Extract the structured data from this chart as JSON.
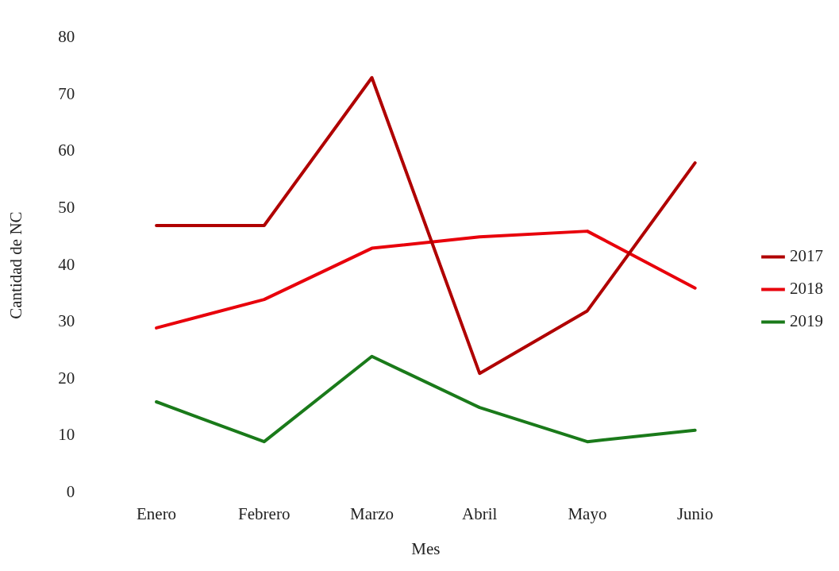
{
  "chart_data": {
    "type": "line",
    "xlabel": "Mes",
    "ylabel": "Cantidad de NC",
    "categories": [
      "Enero",
      "Febrero",
      "Marzo",
      "Abril",
      "Mayo",
      "Junio"
    ],
    "series": [
      {
        "name": "2017",
        "color": "#b00000",
        "values": [
          47,
          47,
          73,
          21,
          32,
          58
        ]
      },
      {
        "name": "2018",
        "color": "#e8000b",
        "values": [
          29,
          34,
          43,
          45,
          46,
          36
        ]
      },
      {
        "name": "2019",
        "color": "#1a7a1a",
        "values": [
          16,
          9,
          24,
          15,
          9,
          11
        ]
      }
    ],
    "ylim": [
      0,
      80
    ],
    "yticks": [
      0,
      10,
      20,
      30,
      40,
      50,
      60,
      70,
      80
    ],
    "grid": false,
    "legend": "right",
    "marker": "none",
    "line_style": "solid"
  }
}
